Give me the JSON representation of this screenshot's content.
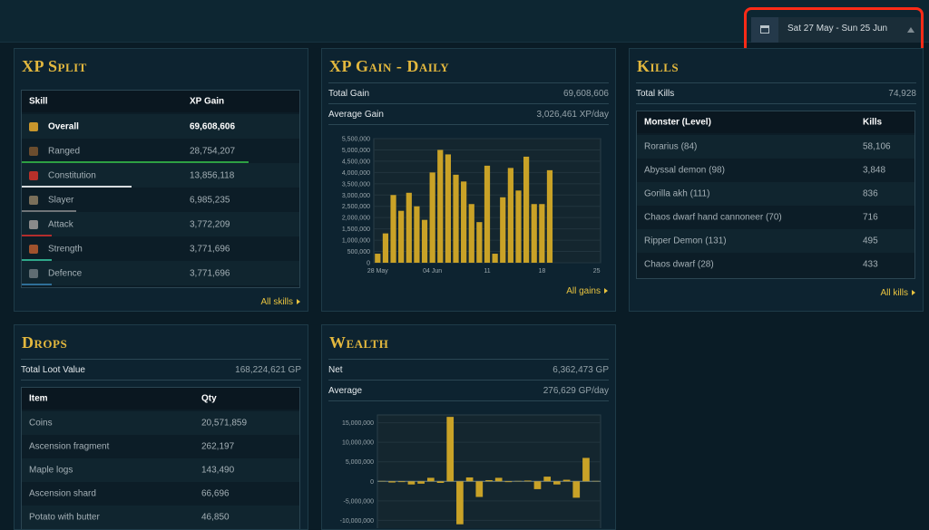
{
  "date_range": "Sat 27 May - Sun 25 Jun",
  "xp_split": {
    "title": "XP Split",
    "columns": [
      "Skill",
      "XP Gain"
    ],
    "rows": [
      [
        "Overall",
        "69,608,606"
      ],
      [
        "Ranged",
        "28,754,207"
      ],
      [
        "Constitution",
        "13,856,118"
      ],
      [
        "Slayer",
        "6,985,235"
      ],
      [
        "Attack",
        "3,772,209"
      ],
      [
        "Strength",
        "3,771,696"
      ],
      [
        "Defence",
        "3,771,696"
      ]
    ],
    "link": "All skills"
  },
  "xp_gain_daily": {
    "title": "XP Gain - Daily",
    "stats": [
      [
        "Total Gain",
        "69,608,606"
      ],
      [
        "Average Gain",
        "3,026,461 XP/day"
      ]
    ],
    "chart_data": {
      "type": "bar",
      "color": "#c9a227",
      "categories": [
        "28 May",
        null,
        null,
        null,
        null,
        null,
        null,
        "04 Jun",
        null,
        null,
        null,
        null,
        null,
        null,
        "11",
        null,
        null,
        null,
        null,
        null,
        null,
        "18",
        null,
        null,
        null,
        null,
        null,
        null,
        "25"
      ],
      "values": [
        400000,
        1300000,
        3000000,
        2300000,
        3100000,
        2500000,
        1900000,
        4000000,
        5000000,
        4800000,
        3900000,
        3600000,
        2600000,
        1800000,
        4300000,
        400000,
        2900000,
        4200000,
        3200000,
        4700000,
        2600000,
        2600000,
        4100000,
        null,
        null,
        null,
        null,
        null,
        null
      ],
      "ylim": [
        0,
        5500000
      ],
      "yticks": [
        0,
        {
          "value": 500000,
          "label": "500,000"
        },
        {
          "value": 1000000,
          "label": "1,000,000"
        },
        {
          "value": 1500000,
          "label": "1,500,000"
        },
        {
          "value": 2000000,
          "label": "2,000,000"
        },
        {
          "value": 2500000,
          "label": "2,500,000"
        },
        {
          "value": 3000000,
          "label": "3,000,000"
        },
        {
          "value": 3500000,
          "label": "3,500,000"
        },
        {
          "value": 4000000,
          "label": "4,000,000"
        },
        {
          "value": 4500000,
          "label": "4,500,000"
        },
        {
          "value": 5000000,
          "label": "5,000,000"
        },
        {
          "value": 5500000,
          "label": "5,500,000"
        }
      ],
      "grid": true
    },
    "link": "All gains"
  },
  "kills": {
    "title": "Kills",
    "stats": [
      [
        "Total Kills",
        "74,928"
      ]
    ],
    "columns": [
      "Monster (Level)",
      "Kills"
    ],
    "rows": [
      [
        "Rorarius (84)",
        "58,106"
      ],
      [
        "Abyssal demon (98)",
        "3,848"
      ],
      [
        "Gorilla akh (111)",
        "836"
      ],
      [
        "Chaos dwarf hand cannoneer (70)",
        "716"
      ],
      [
        "Ripper Demon (131)",
        "495"
      ],
      [
        "Chaos dwarf (28)",
        "433"
      ]
    ],
    "link": "All kills"
  },
  "drops": {
    "title": "Drops",
    "stats": [
      [
        "Total Loot Value",
        "168,224,621 GP"
      ]
    ],
    "columns": [
      "Item",
      "Qty"
    ],
    "rows": [
      [
        "Coins",
        "20,571,859"
      ],
      [
        "Ascension fragment",
        "262,197"
      ],
      [
        "Maple logs",
        "143,490"
      ],
      [
        "Ascension shard",
        "66,696"
      ],
      [
        "Potato with butter",
        "46,850"
      ]
    ]
  },
  "wealth": {
    "title": "Wealth",
    "stats": [
      [
        "Net",
        "6,362,473 GP"
      ],
      [
        "Average",
        "276,629 GP/day"
      ]
    ],
    "chart_data": {
      "type": "bar",
      "color": "#c9a227",
      "values": [
        100000,
        -300000,
        -200000,
        -800000,
        -600000,
        900000,
        -400000,
        16500000,
        -11000000,
        1000000,
        -4000000,
        300000,
        900000,
        -200000,
        100000,
        200000,
        -2000000,
        1200000,
        -800000,
        400000,
        -4200000,
        6000000,
        100000
      ],
      "ylim": [
        -12000000,
        17000000
      ],
      "yticks": [
        {
          "value": -10000000,
          "label": "-10,000,000"
        },
        {
          "value": -5000000,
          "label": "-5,000,000"
        },
        0,
        {
          "value": 5000000,
          "label": "5,000,000"
        },
        {
          "value": 10000000,
          "label": "10,000,000"
        },
        {
          "value": 15000000,
          "label": "15,000,000"
        }
      ],
      "grid": true
    }
  }
}
